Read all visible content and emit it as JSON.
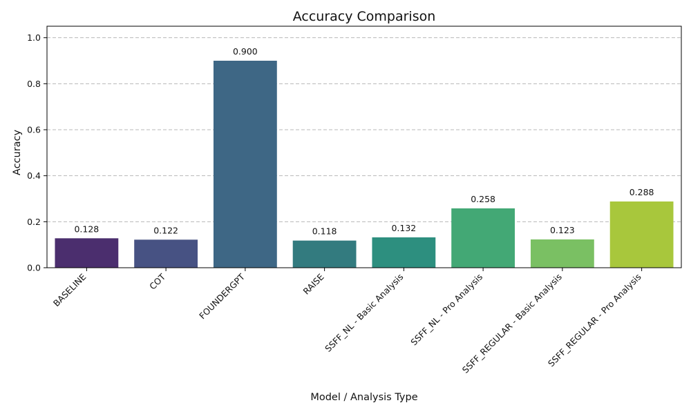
{
  "chart_data": {
    "type": "bar",
    "title": "Accuracy Comparison",
    "xlabel": "Model / Analysis Type",
    "ylabel": "Accuracy",
    "ylim": [
      0,
      1.05
    ],
    "yticks": [
      0.0,
      0.2,
      0.4,
      0.6,
      0.8,
      1.0
    ],
    "grid": "y-dashed",
    "categories": [
      "BASELINE",
      "COT",
      "FOUNDERGPT",
      "RAISE",
      "SSFF_NL - Basic Analysis",
      "SSFF_NL - Pro Analysis",
      "SSFF_REGULAR - Basic Analysis",
      "SSFF_REGULAR - Pro Analysis"
    ],
    "values": [
      0.128,
      0.122,
      0.9,
      0.118,
      0.132,
      0.258,
      0.123,
      0.288
    ],
    "data_labels": [
      "0.128",
      "0.122",
      "0.900",
      "0.118",
      "0.132",
      "0.258",
      "0.123",
      "0.288"
    ],
    "colors": [
      "#4b2e6e",
      "#475283",
      "#3e6785",
      "#337b7f",
      "#2d8f7f",
      "#43a875",
      "#7ac063",
      "#a8c73c"
    ]
  }
}
